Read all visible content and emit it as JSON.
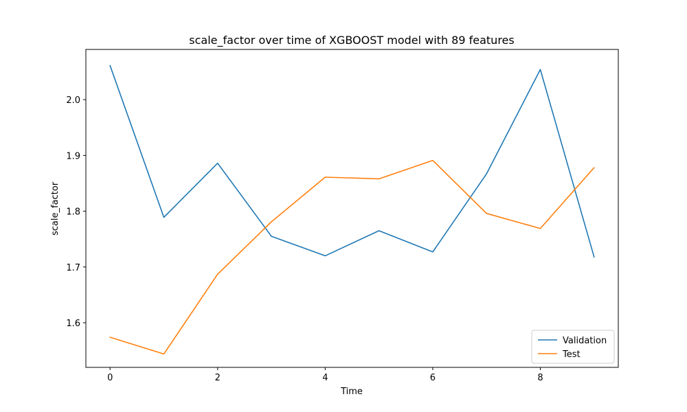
{
  "chart_data": {
    "type": "line",
    "title": "scale_factor over time of XGBOOST model with 89 features",
    "xlabel": "Time",
    "ylabel": "scale_factor",
    "xlim": [
      -0.45,
      9.45
    ],
    "ylim": [
      1.52,
      2.09
    ],
    "xticks": [
      0,
      2,
      4,
      6,
      8
    ],
    "yticks": [
      1.6,
      1.7,
      1.8,
      1.9,
      2.0
    ],
    "xtick_labels": [
      "0",
      "2",
      "4",
      "6",
      "8"
    ],
    "ytick_labels": [
      "1.6",
      "1.7",
      "1.8",
      "1.9",
      "2.0"
    ],
    "grid": false,
    "legend_position": "lower-right",
    "x": [
      0,
      1,
      2,
      3,
      4,
      5,
      6,
      7,
      8,
      9
    ],
    "series": [
      {
        "name": "Validation",
        "color": "#1f77b4",
        "values": [
          2.061,
          1.789,
          1.886,
          1.755,
          1.72,
          1.765,
          1.727,
          1.867,
          2.054,
          1.718
        ]
      },
      {
        "name": "Test",
        "color": "#ff7f0e",
        "values": [
          1.574,
          1.544,
          1.687,
          1.781,
          1.861,
          1.858,
          1.891,
          1.796,
          1.769,
          1.878
        ]
      }
    ]
  }
}
